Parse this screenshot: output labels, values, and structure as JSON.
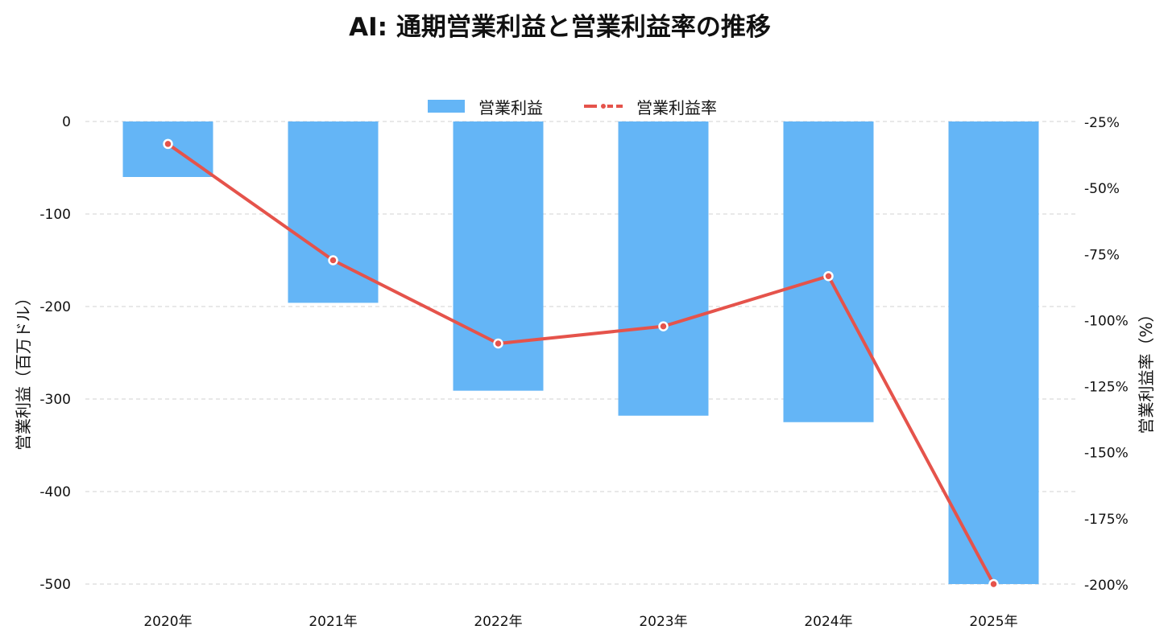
{
  "chart_data": {
    "type": "bar",
    "title": "AI: 通期営業利益と営業利益率の推移",
    "categories": [
      "2020年",
      "2021年",
      "2022年",
      "2023年",
      "2024年",
      "2025年"
    ],
    "series": [
      {
        "name": "営業利益",
        "type": "bar",
        "axis": "left",
        "color": "#64b5f6",
        "values": [
          -60,
          -196,
          -291,
          -318,
          -325,
          -500
        ]
      },
      {
        "name": "営業利益率",
        "type": "line",
        "axis": "right",
        "color": "#e5534b",
        "values": [
          -33.5,
          -77.5,
          -109,
          -102.5,
          -83.5,
          -200
        ]
      }
    ],
    "ylabel": "営業利益（百万ドル）",
    "ylim": [
      -500,
      0
    ],
    "yticks": [
      0,
      -100,
      -200,
      -300,
      -400,
      -500
    ],
    "ytick_labels": [
      "0",
      "-100",
      "-200",
      "-300",
      "-400",
      "-500"
    ],
    "y2label": "営業利益率（%）",
    "y2lim": [
      -200,
      -25
    ],
    "y2ticks": [
      -25,
      -50,
      -75,
      -100,
      -125,
      -150,
      -175,
      -200
    ],
    "y2tick_labels": [
      "-25%",
      "-50%",
      "-75%",
      "-100%",
      "-125%",
      "-150%",
      "-175%",
      "-200%"
    ],
    "grid": true,
    "legend_position": "top-center"
  }
}
